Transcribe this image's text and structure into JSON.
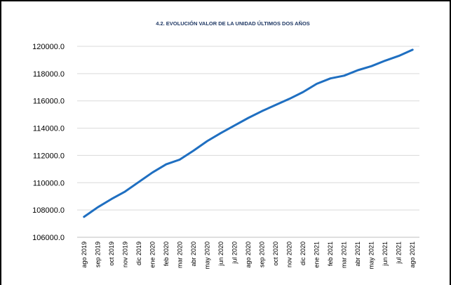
{
  "chart_data": {
    "type": "line",
    "title": "4.2. EVOLUCIÓN VALOR DE LA UNIDAD ÚLTIMOS DOS AÑOS",
    "xlabel": "",
    "ylabel": "",
    "ylim": [
      106000,
      120000
    ],
    "yticks": [
      "106000.0",
      "108000.0",
      "110000.0",
      "112000.0",
      "114000.0",
      "116000.0",
      "118000.0",
      "120000.0"
    ],
    "categories": [
      "ago 2019",
      "sep 2019",
      "oct 2019",
      "nov 2019",
      "dic 2019",
      "ene 2020",
      "feb 2020",
      "mar 2020",
      "abr 2020",
      "may 2020",
      "jun 2020",
      "jul 2020",
      "ago 2020",
      "sep 2020",
      "oct 2020",
      "nov 2020",
      "dic 2020",
      "ene 2021",
      "feb 2021",
      "mar 2021",
      "abr 2021",
      "may 2021",
      "jun 2021",
      "jul 2021",
      "ago 2021"
    ],
    "series": [
      {
        "values": [
          107500,
          108200,
          108800,
          109350,
          110050,
          110750,
          111350,
          111700,
          112350,
          113050,
          113650,
          114200,
          114750,
          115250,
          115700,
          116150,
          116650,
          117250,
          117650,
          117850,
          118250,
          118550,
          118950,
          119300,
          119750
        ]
      }
    ],
    "grid": true,
    "legend": "none",
    "line_color": "#1f6fc1"
  }
}
